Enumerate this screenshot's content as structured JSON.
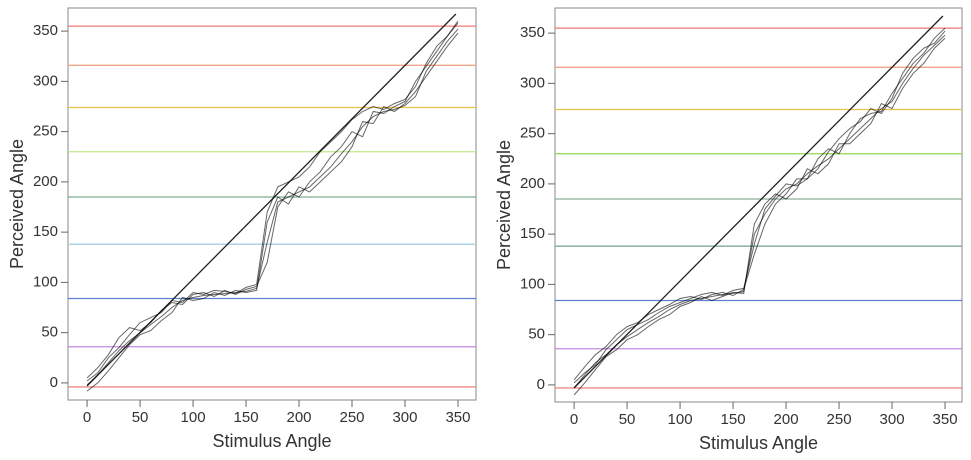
{
  "chart_data": [
    {
      "type": "line",
      "xlabel": "Stimulus Angle",
      "ylabel": "Perceived Angle",
      "xlim": [
        -18,
        367
      ],
      "ylim": [
        -17,
        373
      ],
      "xticks": [
        0,
        50,
        100,
        150,
        200,
        250,
        300,
        350
      ],
      "yticks": [
        0,
        50,
        100,
        150,
        200,
        250,
        300,
        350
      ],
      "hlines": [
        {
          "value": -4,
          "color": "#f08a8a"
        },
        {
          "value": 36,
          "color": "#c28ae0"
        },
        {
          "value": 84,
          "color": "#5f7fd0"
        },
        {
          "value": 138,
          "color": "#a8cce0"
        },
        {
          "value": 185,
          "color": "#7fae8e"
        },
        {
          "value": 230,
          "color": "#c2e68a"
        },
        {
          "value": 274,
          "color": "#e8c24a"
        },
        {
          "value": 316,
          "color": "#f0a488"
        },
        {
          "value": 355,
          "color": "#f07878"
        }
      ],
      "reference_line": {
        "x": [
          0,
          348
        ],
        "values": [
          -3,
          367
        ],
        "color": "#222222"
      },
      "x": [
        0,
        10,
        20,
        30,
        40,
        50,
        60,
        70,
        80,
        90,
        100,
        110,
        120,
        130,
        140,
        150,
        160,
        170,
        180,
        190,
        200,
        210,
        220,
        230,
        240,
        250,
        260,
        270,
        280,
        290,
        300,
        310,
        320,
        330,
        340,
        350
      ],
      "series": [
        {
          "color": "#000000",
          "values": [
            -2,
            8,
            20,
            32,
            42,
            50,
            58,
            66,
            75,
            82,
            85,
            87,
            88,
            89,
            90,
            91,
            94,
            140,
            180,
            185,
            190,
            195,
            205,
            215,
            228,
            240,
            255,
            265,
            270,
            272,
            276,
            285,
            310,
            325,
            340,
            352
          ]
        },
        {
          "color": "#000000",
          "values": [
            5,
            15,
            28,
            45,
            55,
            52,
            60,
            72,
            80,
            78,
            88,
            90,
            86,
            92,
            88,
            93,
            96,
            120,
            175,
            190,
            185,
            200,
            210,
            225,
            235,
            250,
            245,
            270,
            268,
            275,
            280,
            300,
            315,
            330,
            345,
            358
          ]
        },
        {
          "color": "#000000",
          "values": [
            -8,
            0,
            12,
            25,
            38,
            48,
            52,
            62,
            70,
            85,
            82,
            84,
            90,
            87,
            92,
            90,
            92,
            160,
            185,
            178,
            195,
            190,
            200,
            210,
            220,
            235,
            260,
            258,
            275,
            270,
            278,
            290,
            305,
            320,
            335,
            348
          ]
        },
        {
          "color": "#000000",
          "values": [
            2,
            10,
            25,
            35,
            48,
            60,
            65,
            70,
            82,
            80,
            90,
            88,
            92,
            91,
            89,
            95,
            98,
            170,
            195,
            200,
            205,
            215,
            230,
            240,
            250,
            262,
            270,
            275,
            272,
            278,
            282,
            295,
            318,
            335,
            345,
            360
          ]
        }
      ]
    },
    {
      "type": "line",
      "xlabel": "Stimulus Angle",
      "ylabel": "Perceived Angle",
      "xlim": [
        -18,
        366
      ],
      "ylim": [
        -17,
        375
      ],
      "xticks": [
        0,
        50,
        100,
        150,
        200,
        250,
        300,
        350
      ],
      "yticks": [
        0,
        50,
        100,
        150,
        200,
        250,
        300,
        350
      ],
      "hlines": [
        {
          "value": -3,
          "color": "#f08a8a"
        },
        {
          "value": 36,
          "color": "#c28ae0"
        },
        {
          "value": 84,
          "color": "#5f7fd0"
        },
        {
          "value": 138,
          "color": "#7fa8a0"
        },
        {
          "value": 185,
          "color": "#8fae9a"
        },
        {
          "value": 230,
          "color": "#8ed84a"
        },
        {
          "value": 274,
          "color": "#e8c24a"
        },
        {
          "value": 316,
          "color": "#f0a488"
        },
        {
          "value": 355,
          "color": "#f07878"
        }
      ],
      "reference_line": {
        "x": [
          0,
          348
        ],
        "values": [
          -3,
          367
        ],
        "color": "#222222"
      },
      "x": [
        0,
        10,
        20,
        30,
        40,
        50,
        60,
        70,
        80,
        90,
        100,
        110,
        120,
        130,
        140,
        150,
        160,
        170,
        180,
        190,
        200,
        210,
        220,
        230,
        240,
        250,
        260,
        270,
        280,
        290,
        300,
        310,
        320,
        330,
        340,
        350
      ],
      "series": [
        {
          "color": "#000000",
          "values": [
            -3,
            10,
            22,
            30,
            40,
            48,
            55,
            62,
            68,
            75,
            80,
            84,
            86,
            88,
            90,
            91,
            93,
            150,
            170,
            185,
            195,
            200,
            210,
            218,
            225,
            235,
            245,
            255,
            265,
            275,
            282,
            300,
            315,
            328,
            338,
            348
          ]
        },
        {
          "color": "#000000",
          "values": [
            5,
            18,
            30,
            38,
            50,
            58,
            62,
            70,
            75,
            80,
            86,
            88,
            85,
            90,
            92,
            89,
            95,
            130,
            160,
            180,
            190,
            205,
            205,
            225,
            235,
            230,
            250,
            265,
            270,
            272,
            290,
            305,
            320,
            330,
            345,
            355
          ]
        },
        {
          "color": "#000000",
          "values": [
            -10,
            2,
            15,
            28,
            35,
            45,
            50,
            58,
            65,
            70,
            78,
            82,
            88,
            84,
            88,
            92,
            91,
            160,
            180,
            190,
            185,
            195,
            215,
            210,
            220,
            240,
            240,
            250,
            260,
            280,
            275,
            295,
            310,
            320,
            335,
            345
          ]
        },
        {
          "color": "#000000",
          "values": [
            2,
            12,
            20,
            35,
            45,
            55,
            60,
            65,
            72,
            78,
            82,
            86,
            90,
            92,
            89,
            94,
            96,
            140,
            175,
            188,
            200,
            198,
            205,
            215,
            232,
            245,
            255,
            262,
            275,
            270,
            285,
            310,
            325,
            335,
            340,
            352
          ]
        }
      ]
    }
  ]
}
